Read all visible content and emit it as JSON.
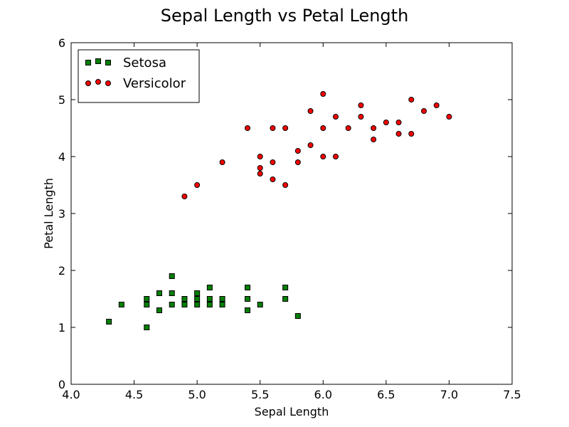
{
  "chart_data": {
    "type": "scatter",
    "title": "Sepal Length vs Petal Length",
    "xlabel": "Sepal Length",
    "ylabel": "Petal Length",
    "xlim": [
      4.0,
      7.5
    ],
    "ylim": [
      0,
      6
    ],
    "x_ticks": [
      4.0,
      4.5,
      5.0,
      5.5,
      6.0,
      6.5,
      7.0,
      7.5
    ],
    "y_ticks": [
      0,
      1,
      2,
      3,
      4,
      5,
      6
    ],
    "x_tick_labels": [
      "4.0",
      "4.5",
      "5.0",
      "5.5",
      "6.0",
      "6.5",
      "7.0",
      "7.5"
    ],
    "y_tick_labels": [
      "0",
      "1",
      "2",
      "3",
      "4",
      "5",
      "6"
    ],
    "grid": false,
    "legend_position": "top-left",
    "series": [
      {
        "name": "Setosa",
        "marker": "square",
        "color": "#007f00",
        "points": [
          [
            4.3,
            1.1
          ],
          [
            4.4,
            1.4
          ],
          [
            4.6,
            1.0
          ],
          [
            4.6,
            1.4
          ],
          [
            4.6,
            1.5
          ],
          [
            4.7,
            1.3
          ],
          [
            4.7,
            1.6
          ],
          [
            4.8,
            1.4
          ],
          [
            4.8,
            1.6
          ],
          [
            4.8,
            1.9
          ],
          [
            4.9,
            1.4
          ],
          [
            4.9,
            1.5
          ],
          [
            5.0,
            1.4
          ],
          [
            5.0,
            1.5
          ],
          [
            5.0,
            1.6
          ],
          [
            5.1,
            1.4
          ],
          [
            5.1,
            1.5
          ],
          [
            5.1,
            1.7
          ],
          [
            5.2,
            1.4
          ],
          [
            5.2,
            1.5
          ],
          [
            5.4,
            1.3
          ],
          [
            5.4,
            1.5
          ],
          [
            5.4,
            1.7
          ],
          [
            5.5,
            1.4
          ],
          [
            5.7,
            1.5
          ],
          [
            5.7,
            1.7
          ],
          [
            5.8,
            1.2
          ]
        ]
      },
      {
        "name": "Versicolor",
        "marker": "circle",
        "color": "#ff0000",
        "points": [
          [
            4.9,
            3.3
          ],
          [
            5.0,
            3.5
          ],
          [
            5.2,
            3.9
          ],
          [
            5.4,
            4.5
          ],
          [
            5.5,
            3.7
          ],
          [
            5.5,
            3.8
          ],
          [
            5.5,
            4.0
          ],
          [
            5.6,
            3.6
          ],
          [
            5.6,
            3.9
          ],
          [
            5.6,
            4.5
          ],
          [
            5.7,
            3.5
          ],
          [
            5.7,
            4.5
          ],
          [
            5.8,
            3.9
          ],
          [
            5.8,
            4.1
          ],
          [
            5.9,
            4.2
          ],
          [
            5.9,
            4.8
          ],
          [
            6.0,
            4.0
          ],
          [
            6.0,
            4.5
          ],
          [
            6.0,
            5.1
          ],
          [
            6.1,
            4.0
          ],
          [
            6.1,
            4.7
          ],
          [
            6.2,
            4.5
          ],
          [
            6.3,
            4.7
          ],
          [
            6.3,
            4.9
          ],
          [
            6.4,
            4.3
          ],
          [
            6.4,
            4.5
          ],
          [
            6.5,
            4.6
          ],
          [
            6.6,
            4.4
          ],
          [
            6.6,
            4.6
          ],
          [
            6.7,
            4.4
          ],
          [
            6.7,
            5.0
          ],
          [
            6.8,
            4.8
          ],
          [
            6.9,
            4.9
          ],
          [
            7.0,
            4.7
          ]
        ]
      }
    ]
  }
}
